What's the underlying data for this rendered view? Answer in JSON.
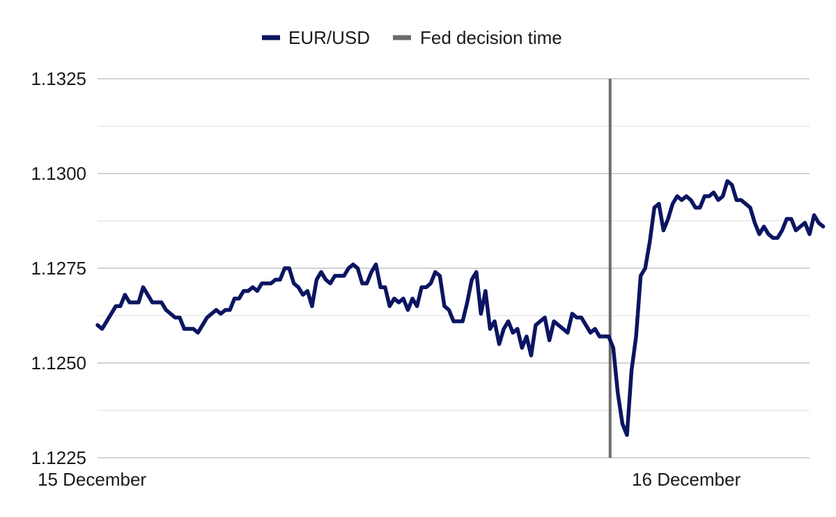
{
  "chart_data": {
    "type": "line",
    "title": "",
    "xlabel": "",
    "ylabel": "",
    "ylim": [
      1.1225,
      1.1325
    ],
    "yticks": [
      {
        "value": 1.1225,
        "label": "1.1225"
      },
      {
        "value": 1.125,
        "label": "1.1250"
      },
      {
        "value": 1.1275,
        "label": "1.1275"
      },
      {
        "value": 1.13,
        "label": "1.1300"
      },
      {
        "value": 1.1325,
        "label": "1.1325"
      }
    ],
    "minor_gridlines": [
      1.12375,
      1.12625,
      1.12875,
      1.13125
    ],
    "grid": true,
    "legend_position": "top-center",
    "xticks": [
      {
        "index": 0,
        "label": "15 December"
      },
      {
        "index": 118,
        "label": "16 December"
      }
    ],
    "x_count": 157,
    "series": [
      {
        "name": "EUR/USD",
        "color": "#0b1561",
        "values": [
          1.126,
          1.1259,
          1.1261,
          1.1263,
          1.1265,
          1.1265,
          1.1268,
          1.1266,
          1.1266,
          1.1266,
          1.127,
          1.1268,
          1.1266,
          1.1266,
          1.1266,
          1.1264,
          1.1263,
          1.1262,
          1.1262,
          1.1259,
          1.1259,
          1.1259,
          1.1258,
          1.126,
          1.1262,
          1.1263,
          1.1264,
          1.1263,
          1.1264,
          1.1264,
          1.1267,
          1.1267,
          1.1269,
          1.1269,
          1.127,
          1.1269,
          1.1271,
          1.1271,
          1.1271,
          1.1272,
          1.1272,
          1.1275,
          1.1275,
          1.1271,
          1.127,
          1.1268,
          1.1269,
          1.1265,
          1.1272,
          1.1274,
          1.1272,
          1.1271,
          1.1273,
          1.1273,
          1.1273,
          1.1275,
          1.1276,
          1.1275,
          1.1271,
          1.1271,
          1.1274,
          1.1276,
          1.127,
          1.127,
          1.1265,
          1.1267,
          1.1266,
          1.1267,
          1.1264,
          1.1267,
          1.1265,
          1.127,
          1.127,
          1.1271,
          1.1274,
          1.1273,
          1.1265,
          1.1264,
          1.1261,
          1.1261,
          1.1261,
          1.1266,
          1.1272,
          1.1274,
          1.1263,
          1.1269,
          1.1259,
          1.1261,
          1.1255,
          1.1259,
          1.1261,
          1.1258,
          1.1259,
          1.1254,
          1.1257,
          1.1252,
          1.126,
          1.1261,
          1.1262,
          1.1256,
          1.1261,
          1.126,
          1.1259,
          1.1258,
          1.1263,
          1.1262,
          1.1262,
          1.126,
          1.1258,
          1.1259,
          1.1257,
          1.1257,
          1.1257,
          1.1254,
          1.1242,
          1.1234,
          1.1231,
          1.1248,
          1.1257,
          1.1273,
          1.1275,
          1.1282,
          1.1291,
          1.1292,
          1.1285,
          1.1288,
          1.1292,
          1.1294,
          1.1293,
          1.1294,
          1.1293,
          1.1291,
          1.1291,
          1.1294,
          1.1294,
          1.1295,
          1.1293,
          1.1294,
          1.1298,
          1.1297,
          1.1293,
          1.1293,
          1.1292,
          1.1291,
          1.1287,
          1.1284,
          1.1286,
          1.1284,
          1.1283,
          1.1283,
          1.1285,
          1.1288,
          1.1288,
          1.1285,
          1.1286,
          1.1287,
          1.1284,
          1.1289,
          1.1287,
          1.1286
        ]
      }
    ],
    "vline": {
      "name": "Fed decision time",
      "color": "#6b6b6b",
      "index": 112
    }
  }
}
